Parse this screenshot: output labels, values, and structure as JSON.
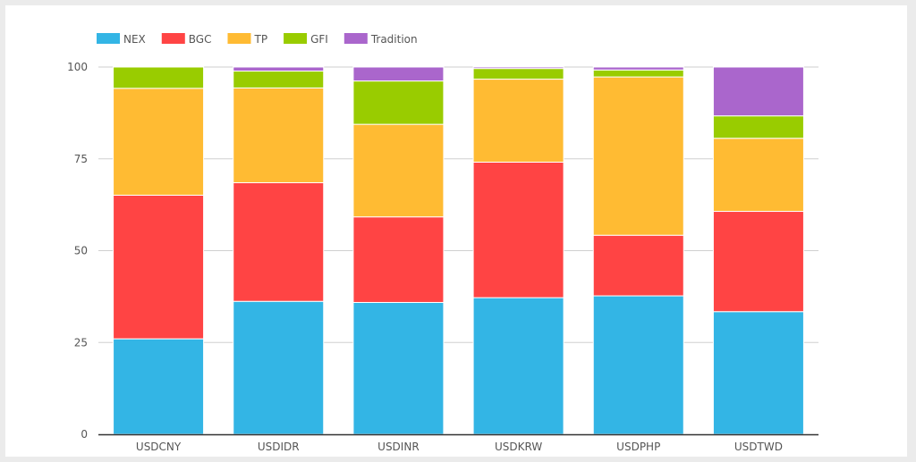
{
  "chart_data": {
    "type": "bar",
    "stacked": true,
    "title": "",
    "xlabel": "",
    "ylabel": "",
    "ylim": [
      0,
      100
    ],
    "yticks": [
      "0",
      "25",
      "50",
      "75",
      "100"
    ],
    "grid": true,
    "legend_position": "top-left",
    "categories": [
      "USDCNY",
      "USDIDR",
      "USDINR",
      "USDKRW",
      "USDPHP",
      "USDTWD"
    ],
    "series": [
      {
        "name": "NEX",
        "color": "#33b5e5",
        "values": [
          26.0,
          36.2,
          35.9,
          37.2,
          37.7,
          33.4
        ]
      },
      {
        "name": "BGC",
        "color": "#ff4444",
        "values": [
          39.1,
          32.3,
          23.3,
          36.9,
          16.5,
          27.3
        ]
      },
      {
        "name": "TP",
        "color": "#ffbb33",
        "values": [
          29.1,
          25.8,
          25.2,
          22.6,
          43.1,
          19.9
        ]
      },
      {
        "name": "GFI",
        "color": "#99cc00",
        "values": [
          5.8,
          4.6,
          11.8,
          2.9,
          1.9,
          6.1
        ]
      },
      {
        "name": "Tradition",
        "color": "#aa66cc",
        "values": [
          0.0,
          1.1,
          3.8,
          0.4,
          0.8,
          13.3
        ]
      }
    ]
  }
}
